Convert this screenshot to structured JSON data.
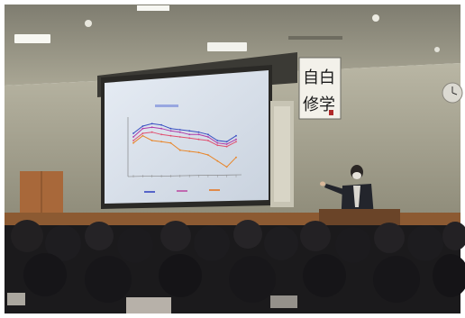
{
  "scene": {
    "subject": "lecture-hall-presentation",
    "slide_lines": [
      "",
      ""
    ],
    "slide_tick_labels": [
      "",
      "",
      "",
      "",
      "",
      "",
      "",
      "",
      "",
      "",
      "",
      "",
      "",
      ""
    ],
    "calligraphy_top": "自白",
    "calligraphy_bottom": "修学",
    "slide_series_colors": {
      "blue": "#3a4fc2",
      "purple": "#b03aa8",
      "pink": "#e05070",
      "orange": "#e8862a"
    },
    "chart_data": {
      "type": "line",
      "series": [
        {
          "values": [
            58,
            64,
            66,
            65,
            62,
            61,
            60,
            59,
            57,
            52,
            51,
            56
          ]
        },
        {
          "values": [
            55,
            62,
            63,
            62,
            60,
            59,
            57,
            57,
            55,
            50,
            49,
            53
          ]
        },
        {
          "values": [
            52,
            58,
            59,
            57,
            56,
            55,
            54,
            53,
            52,
            48,
            47,
            51
          ]
        },
        {
          "values": [
            50,
            56,
            52,
            51,
            50,
            44,
            43,
            42,
            40,
            35,
            30,
            38
          ]
        }
      ]
    }
  }
}
